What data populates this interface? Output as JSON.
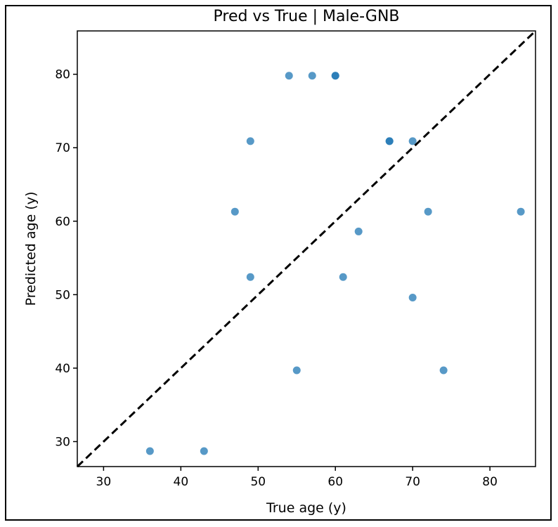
{
  "chart_data": {
    "type": "scatter",
    "title": "Pred vs True | Male-GNB",
    "xlabel": "True age (y)",
    "ylabel": "Predicted age (y)",
    "xlim": [
      26.6,
      85.9
    ],
    "ylim": [
      26.6,
      85.9
    ],
    "xticks": [
      30,
      40,
      50,
      60,
      70,
      80
    ],
    "yticks": [
      30,
      40,
      50,
      60,
      70,
      80
    ],
    "grid": false,
    "reference_line": {
      "style": "dashed",
      "color": "#000000",
      "from": [
        26.6,
        26.6
      ],
      "to": [
        85.9,
        85.9
      ]
    },
    "point_color": "#1f77b4",
    "points": [
      {
        "x": 36,
        "y": 28.7
      },
      {
        "x": 43,
        "y": 28.7
      },
      {
        "x": 55,
        "y": 39.7
      },
      {
        "x": 74,
        "y": 39.7
      },
      {
        "x": 70,
        "y": 49.6
      },
      {
        "x": 49,
        "y": 52.4
      },
      {
        "x": 61,
        "y": 52.4
      },
      {
        "x": 63,
        "y": 58.6
      },
      {
        "x": 47,
        "y": 61.3
      },
      {
        "x": 72,
        "y": 61.3
      },
      {
        "x": 84,
        "y": 61.3
      },
      {
        "x": 49,
        "y": 70.9
      },
      {
        "x": 67,
        "y": 70.9
      },
      {
        "x": 67,
        "y": 70.9
      },
      {
        "x": 70,
        "y": 70.9
      },
      {
        "x": 54,
        "y": 79.8
      },
      {
        "x": 57,
        "y": 79.8
      },
      {
        "x": 60,
        "y": 79.8
      },
      {
        "x": 60,
        "y": 79.8
      }
    ]
  }
}
